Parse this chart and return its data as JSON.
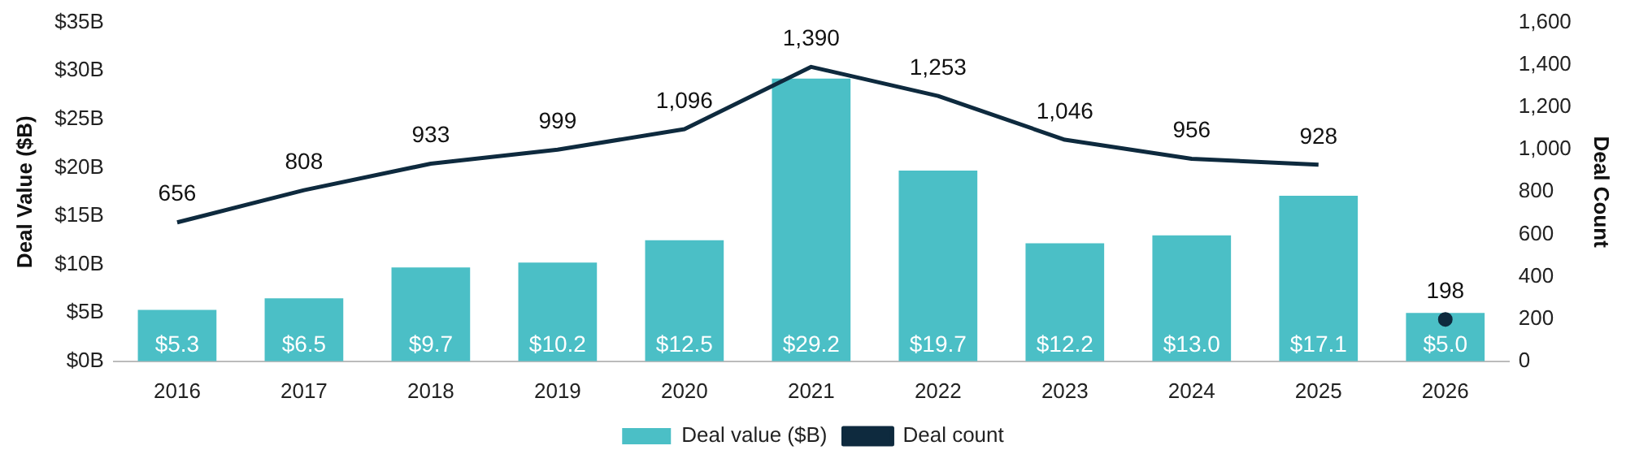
{
  "chart_data": {
    "type": "bar",
    "categories": [
      "2016",
      "2017",
      "2018",
      "2019",
      "2020",
      "2021",
      "2022",
      "2023",
      "2024",
      "2025",
      "2026"
    ],
    "ylabel": "Deal Value ($B)",
    "y2label": "Deal Count",
    "ylim": [
      0,
      35
    ],
    "yticks": [
      {
        "value": 0,
        "label": "$0B"
      },
      {
        "value": 5,
        "label": "$5B"
      },
      {
        "value": 10,
        "label": "$10B"
      },
      {
        "value": 15,
        "label": "$15B"
      },
      {
        "value": 20,
        "label": "$20B"
      },
      {
        "value": 25,
        "label": "$25B"
      },
      {
        "value": 30,
        "label": "$30B"
      },
      {
        "value": 35,
        "label": "$35B"
      }
    ],
    "y2lim": [
      0,
      1600
    ],
    "y2ticks": [
      0,
      200,
      400,
      600,
      800,
      {
        "value": 1000,
        "label": "1,000"
      },
      {
        "value": 1200,
        "label": "1,200"
      },
      {
        "value": 1400,
        "label": "1,400"
      },
      {
        "value": 1600,
        "label": "1,600"
      }
    ],
    "legend": "bottom",
    "grid": false,
    "series": [
      {
        "name": "Deal value ($B)",
        "color": "#4bbfc6",
        "values": [
          5.3,
          6.5,
          9.7,
          10.2,
          12.5,
          29.2,
          19.7,
          12.2,
          13.0,
          17.1,
          5.0
        ],
        "value_labels": [
          "$5.3",
          "$6.5",
          "$9.7",
          "$10.2",
          "$12.5",
          "$29.2",
          "$19.7",
          "$12.2",
          "$13.0",
          "$17.1",
          "$5.0"
        ]
      },
      {
        "type": "line",
        "name": "Deal count",
        "axis": "y2",
        "color": "#0e2a3e",
        "marker": "none",
        "values": [
          656,
          808,
          933,
          999,
          1096,
          1390,
          1253,
          1046,
          956,
          928,
          null
        ],
        "value_labels": [
          "656",
          "808",
          "933",
          "999",
          "1,096",
          "1,390",
          "1,253",
          "1,046",
          "956",
          "928",
          null
        ]
      },
      {
        "type": "scatter",
        "axis": "y2",
        "color": "#0e2a3e",
        "marker": "circle",
        "values": [
          null,
          null,
          null,
          null,
          null,
          null,
          null,
          null,
          null,
          null,
          198
        ],
        "value_labels": [
          null,
          null,
          null,
          null,
          null,
          null,
          null,
          null,
          null,
          null,
          "198"
        ]
      }
    ]
  }
}
